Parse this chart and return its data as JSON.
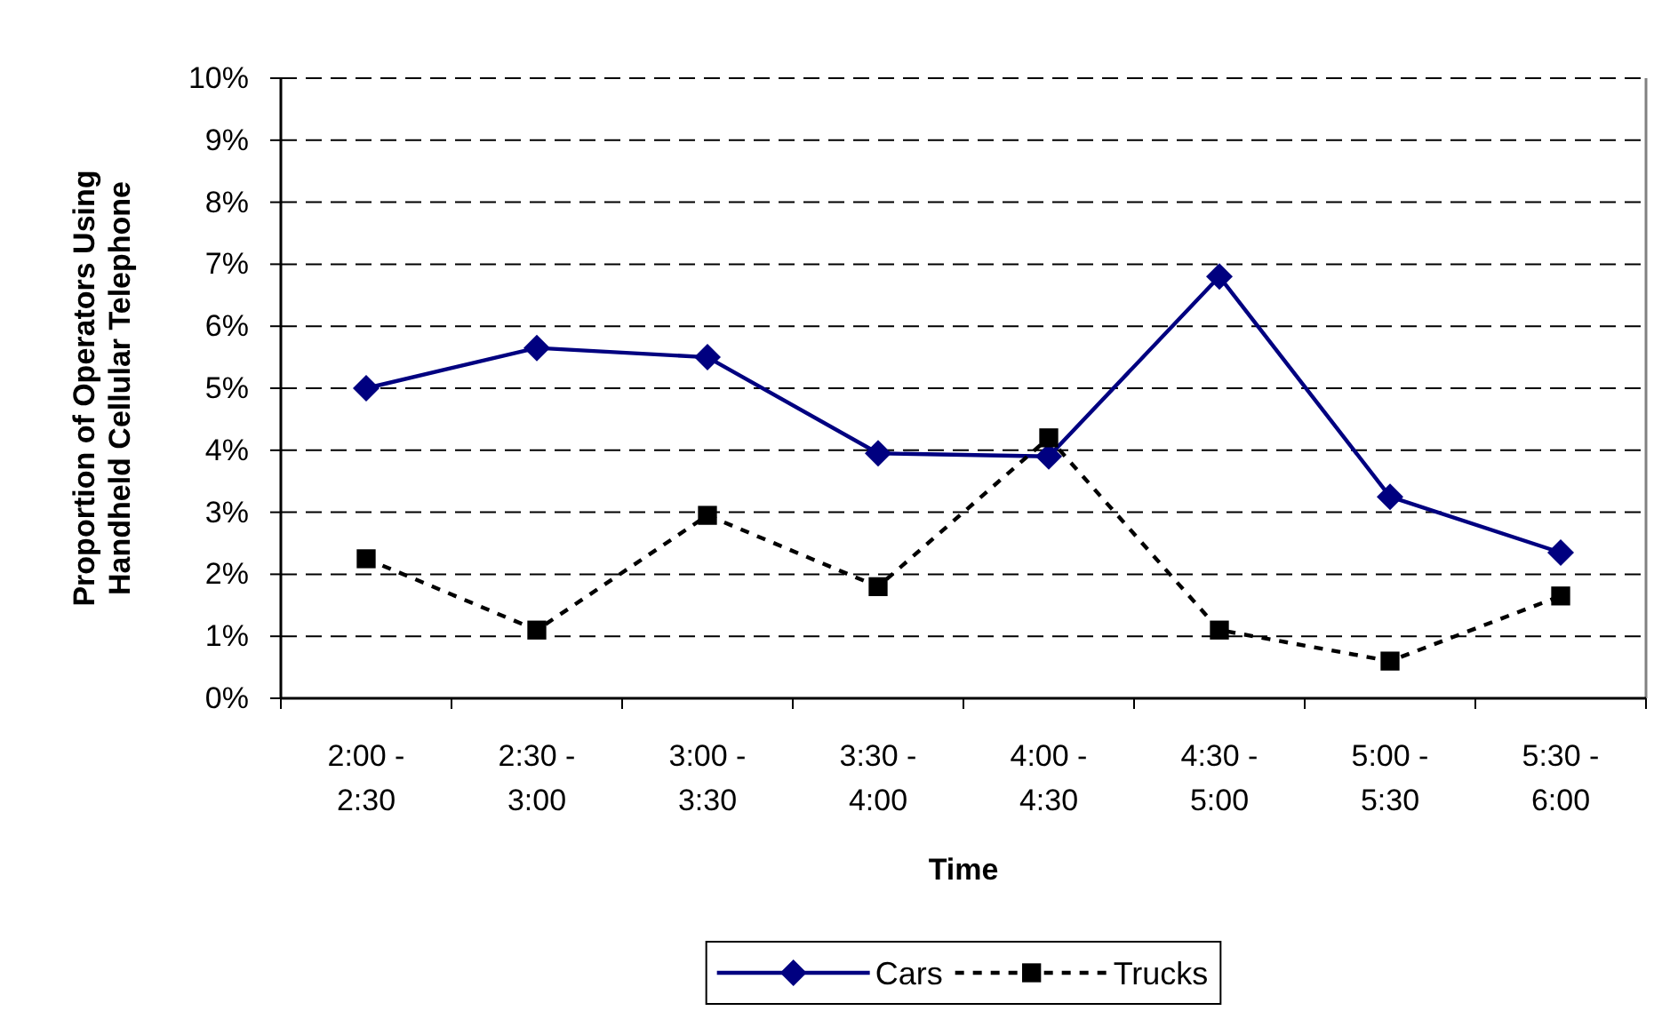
{
  "chart_data": {
    "type": "line",
    "xlabel": "Time",
    "ylabel": "Proportion of Operators Using Handheld Cellular Telephone",
    "categories": [
      "2:00 - 2:30",
      "2:30 - 3:00",
      "3:00 - 3:30",
      "3:30 - 4:00",
      "4:00 - 4:30",
      "4:30 - 5:00",
      "5:00 - 5:30",
      "5:30 - 6:00"
    ],
    "series": [
      {
        "name": "Cars",
        "color": "#000080",
        "marker": "diamond",
        "line_style": "solid",
        "values": [
          5.0,
          5.65,
          5.5,
          3.95,
          3.9,
          6.8,
          3.25,
          2.35
        ]
      },
      {
        "name": "Trucks",
        "color": "#000000",
        "marker": "square",
        "line_style": "dashed",
        "values": [
          2.25,
          1.1,
          2.95,
          1.8,
          4.2,
          1.1,
          0.6,
          1.65
        ]
      }
    ],
    "ylim": [
      0,
      10
    ],
    "yticks": [
      {
        "value": 0,
        "label": "0%"
      },
      {
        "value": 1,
        "label": "1%"
      },
      {
        "value": 2,
        "label": "2%"
      },
      {
        "value": 3,
        "label": "3%"
      },
      {
        "value": 4,
        "label": "4%"
      },
      {
        "value": 5,
        "label": "5%"
      },
      {
        "value": 6,
        "label": "6%"
      },
      {
        "value": 7,
        "label": "7%"
      },
      {
        "value": 8,
        "label": "8%"
      },
      {
        "value": 9,
        "label": "9%"
      },
      {
        "value": 10,
        "label": "10%"
      }
    ],
    "grid": "y",
    "legend": "bottom"
  }
}
